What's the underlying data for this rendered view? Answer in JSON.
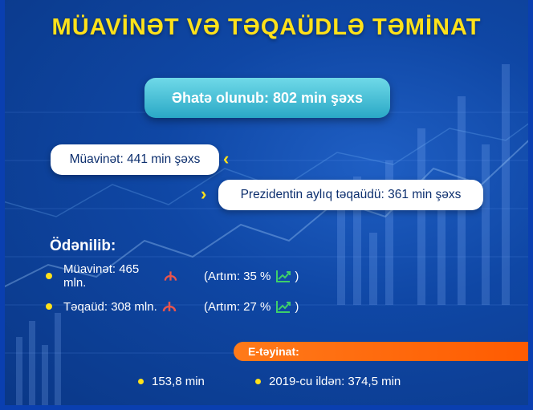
{
  "title": "MÜAVİNƏT VƏ TƏQAÜDLƏ TƏMİNAT",
  "covered_label": "Əhatə olunub: 802 min şəxs",
  "benefit_people": "Müavinət: 441 min şəxs",
  "pension_people": "Prezidentin aylıq təqaüdü: 361 min şəxs",
  "paid": {
    "title": "Ödənilib:",
    "items": [
      {
        "label": "Müavinət: 465 mln.",
        "growth": "(Artım: 35 %",
        "close": ")"
      },
      {
        "label": "Təqaüd: 308 mln.",
        "growth": "(Artım: 27 %",
        "close": ")"
      }
    ]
  },
  "assignment": {
    "title": "E-təyinat:",
    "items": [
      "153,8 min",
      "2019-cu ildən: 374,5 min"
    ]
  },
  "colors": {
    "accent_yellow": "#ffe11a",
    "cyan_box": "#2aa8c6",
    "orange_band": "#ff5a00",
    "manat_red": "#e8554d",
    "trend_green": "#3ecf6a",
    "background": "#0f47a5"
  },
  "icons": {
    "manat": "manat-sign-icon",
    "growth": "trend-up-icon",
    "chevron": "chevron-icon",
    "bullet": "bullet-dot-icon"
  }
}
